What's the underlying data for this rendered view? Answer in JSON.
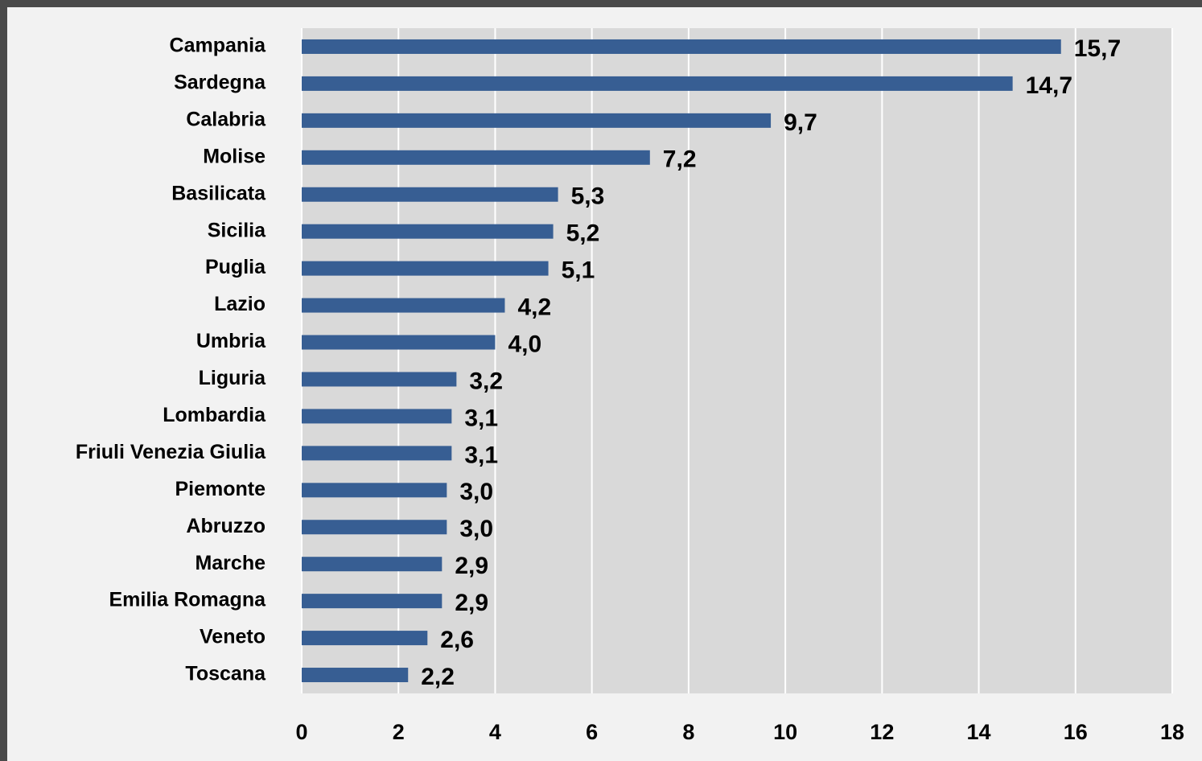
{
  "chart_data": {
    "type": "bar",
    "orientation": "horizontal",
    "categories": [
      "Campania",
      "Sardegna",
      "Calabria",
      "Molise",
      "Basilicata",
      "Sicilia",
      "Puglia",
      "Lazio",
      "Umbria",
      "Liguria",
      "Lombardia",
      "Friuli Venezia Giulia",
      "Piemonte",
      "Abruzzo",
      "Marche",
      "Emilia Romagna",
      "Veneto",
      "Toscana"
    ],
    "values": [
      15.7,
      14.7,
      9.7,
      7.2,
      5.3,
      5.2,
      5.1,
      4.2,
      4.0,
      3.2,
      3.1,
      3.1,
      3.0,
      3.0,
      2.9,
      2.9,
      2.6,
      2.2
    ],
    "value_labels": [
      "15,7",
      "14,7",
      "9,7",
      "7,2",
      "5,3",
      "5,2",
      "5,1",
      "4,2",
      "4,0",
      "3,2",
      "3,1",
      "3,1",
      "3,0",
      "3,0",
      "2,9",
      "2,9",
      "2,6",
      "2,2"
    ],
    "color": "#375e93",
    "xlim": [
      0,
      18
    ],
    "xticks": [
      0,
      2,
      4,
      6,
      8,
      10,
      12,
      14,
      16,
      18
    ],
    "grid": true
  }
}
